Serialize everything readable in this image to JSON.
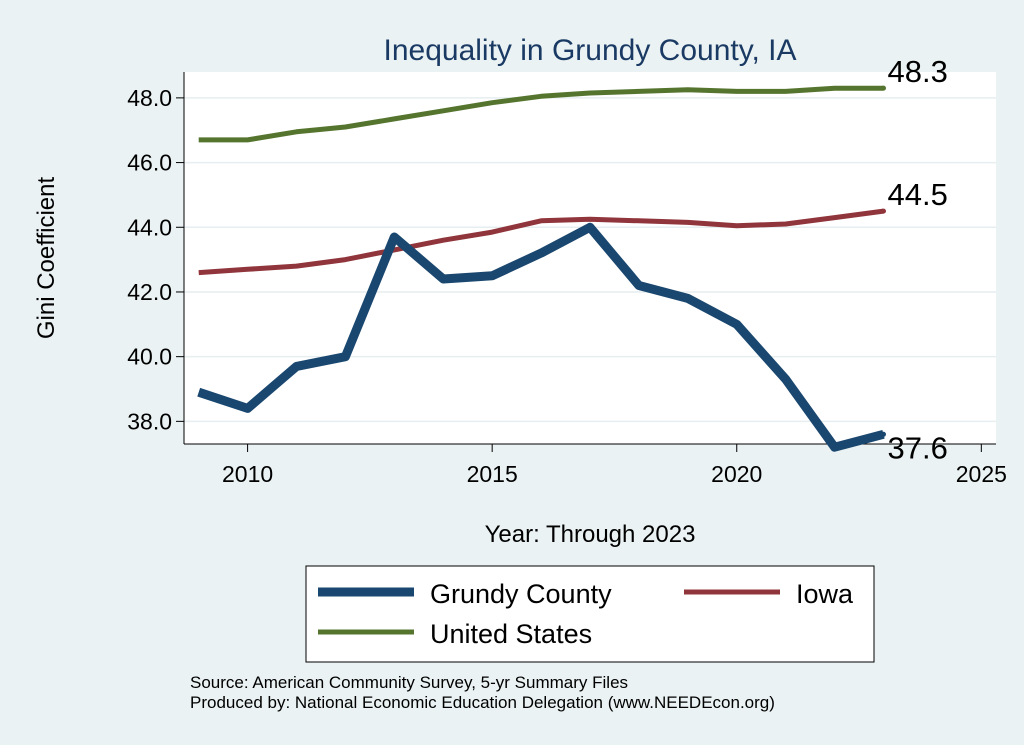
{
  "chart_data": {
    "type": "line",
    "title": "Inequality in Grundy County, IA",
    "xlabel": "Year: Through 2023",
    "ylabel": "Gini Coefficient",
    "xlim": [
      2008.7,
      2025.3
    ],
    "ylim": [
      37.3,
      48.8
    ],
    "x_ticks": [
      2010,
      2015,
      2020,
      2025
    ],
    "y_ticks": [
      38.0,
      40.0,
      42.0,
      44.0,
      46.0,
      48.0
    ],
    "y_tick_labels": [
      "38.0",
      "40.0",
      "42.0",
      "44.0",
      "46.0",
      "48.0"
    ],
    "x": [
      2009,
      2010,
      2011,
      2012,
      2013,
      2014,
      2015,
      2016,
      2017,
      2018,
      2019,
      2020,
      2021,
      2022,
      2023
    ],
    "series": [
      {
        "name": "Grundy County",
        "color": "#1a476f",
        "values": [
          38.9,
          38.4,
          39.7,
          40.0,
          43.7,
          42.4,
          42.5,
          43.2,
          44.0,
          42.2,
          41.8,
          41.0,
          39.3,
          37.2,
          37.6
        ],
        "end_label": "37.6"
      },
      {
        "name": "Iowa",
        "color": "#90353b",
        "values": [
          42.6,
          42.7,
          42.8,
          43.0,
          43.3,
          43.6,
          43.85,
          44.2,
          44.25,
          44.2,
          44.15,
          44.05,
          44.1,
          44.3,
          44.5
        ],
        "end_label": "44.5"
      },
      {
        "name": "United States",
        "color": "#55752f",
        "values": [
          46.7,
          46.7,
          46.95,
          47.1,
          47.35,
          47.6,
          47.85,
          48.05,
          48.15,
          48.2,
          48.25,
          48.2,
          48.2,
          48.3,
          48.3
        ],
        "end_label": "48.3"
      }
    ],
    "legend": {
      "placement": "bottom",
      "entries": [
        "Grundy County",
        "Iowa",
        "United States"
      ]
    },
    "grid": true
  },
  "footer": {
    "source_line": "Source: American Community Survey, 5-yr Summary Files",
    "produced_line": "Produced by: National Economic Education Delegation (www.NEEDEcon.org)"
  }
}
